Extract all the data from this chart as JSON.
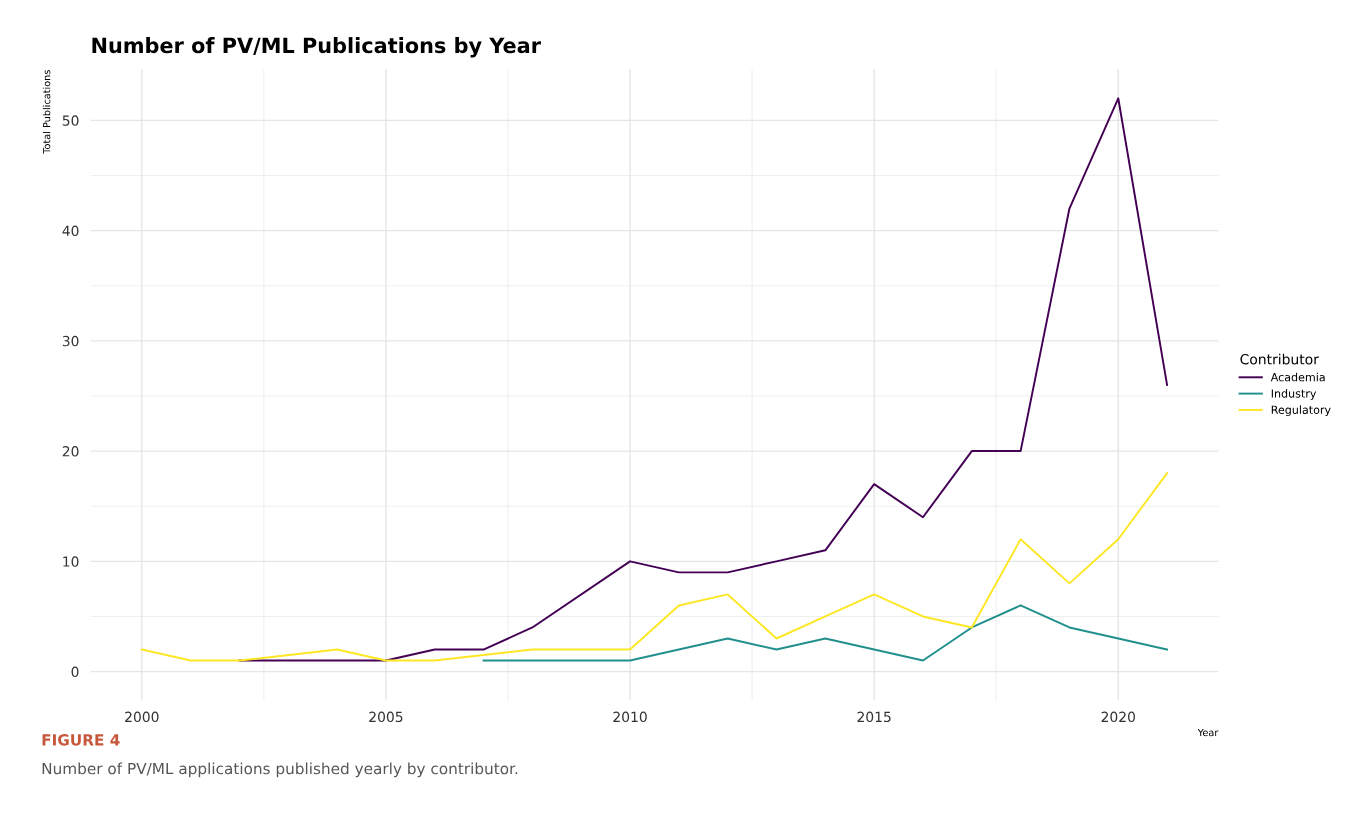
{
  "chart_data": {
    "type": "line",
    "title": "Number of PV/ML Publications by Year",
    "xlabel": "Year",
    "ylabel": "Total Publications",
    "legend_title": "Contributor",
    "legend": "right",
    "grid": true,
    "xlim": [
      1998.95,
      2022.05
    ],
    "xticks": [
      2000,
      2005,
      2010,
      2015,
      2020
    ],
    "ylim": [
      -2.6,
      54.6
    ],
    "yticks": [
      0,
      10,
      20,
      30,
      40,
      50
    ],
    "series": [
      {
        "name": "Academia",
        "color": "#440154",
        "x": [
          2002,
          2003,
          2004,
          2005,
          2006,
          2007,
          2008,
          2010,
          2011,
          2012,
          2013,
          2014,
          2015,
          2016,
          2017,
          2018,
          2019,
          2020,
          2021
        ],
        "values": [
          1,
          1,
          1,
          1,
          2,
          2,
          4,
          10,
          9,
          9,
          10,
          11,
          17,
          14,
          20,
          20,
          42,
          52,
          26
        ]
      },
      {
        "name": "Industry",
        "color": "#21908c",
        "x": [
          2007,
          2008,
          2009,
          2010,
          2011,
          2012,
          2013,
          2014,
          2015,
          2016,
          2017,
          2018,
          2019,
          2020,
          2021
        ],
        "values": [
          1,
          1,
          1,
          1,
          2,
          3,
          2,
          3,
          2,
          1,
          4,
          6,
          4,
          3,
          2
        ]
      },
      {
        "name": "Regulatory",
        "color": "#fde725",
        "x": [
          2000,
          2001,
          2002,
          2004,
          2005,
          2006,
          2008,
          2009,
          2010,
          2011,
          2012,
          2013,
          2014,
          2015,
          2016,
          2017,
          2018,
          2019,
          2020,
          2021
        ],
        "values": [
          2,
          1,
          1,
          2,
          1,
          1,
          2,
          2,
          2,
          6,
          7,
          3,
          5,
          7,
          5,
          4,
          12,
          8,
          12,
          18
        ]
      }
    ],
    "annotations": [
      "FIGURE 4",
      "Number of PV/ML applications published yearly by contributor."
    ]
  }
}
